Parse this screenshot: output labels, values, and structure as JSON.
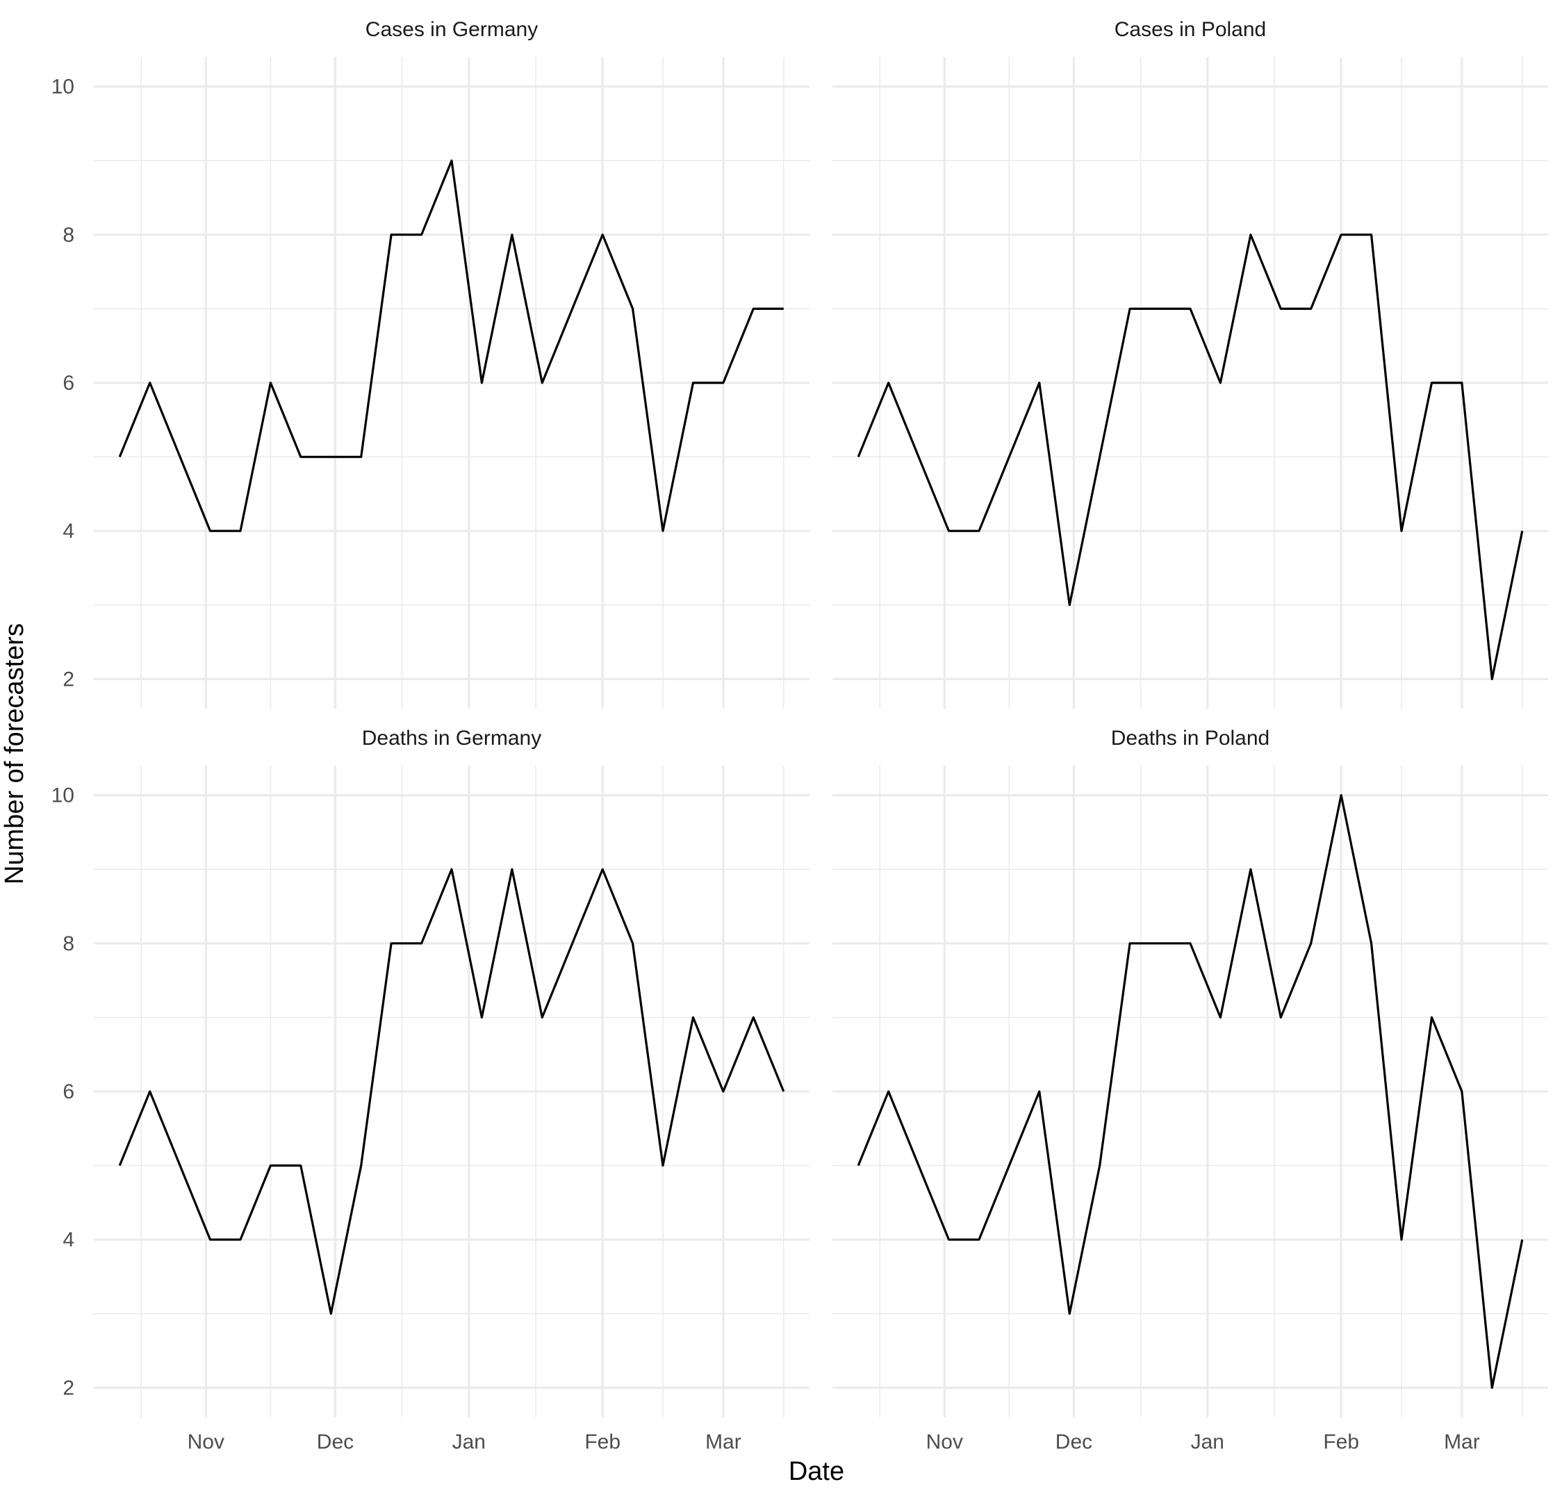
{
  "chart_data": {
    "type": "line",
    "xlabel": "Date",
    "ylabel": "Number of forecasters",
    "ylim": [
      1.6,
      10.4
    ],
    "yticks": [
      2,
      4,
      6,
      8,
      10
    ],
    "xlim": [
      "2020-10-06",
      "2021-03-21"
    ],
    "xticks": [
      {
        "date": "2020-11-01",
        "label": "Nov"
      },
      {
        "date": "2020-12-01",
        "label": "Dec"
      },
      {
        "date": "2021-01-01",
        "label": "Jan"
      },
      {
        "date": "2021-02-01",
        "label": "Feb"
      },
      {
        "date": "2021-03-01",
        "label": "Mar"
      }
    ],
    "grid": true,
    "x_dates": [
      "2020-10-12",
      "2020-10-19",
      "2020-10-26",
      "2020-11-02",
      "2020-11-09",
      "2020-11-16",
      "2020-11-23",
      "2020-11-30",
      "2020-12-07",
      "2020-12-14",
      "2020-12-21",
      "2020-12-28",
      "2021-01-04",
      "2021-01-11",
      "2021-01-18",
      "2021-01-25",
      "2021-02-01",
      "2021-02-08",
      "2021-02-15",
      "2021-02-22",
      "2021-03-01",
      "2021-03-08",
      "2021-03-15"
    ],
    "panels": [
      {
        "title": "Cases in Germany",
        "values": [
          5,
          6,
          5,
          4,
          4,
          6,
          5,
          5,
          5,
          8,
          8,
          9,
          6,
          8,
          6,
          7,
          8,
          7,
          4,
          6,
          6,
          7,
          7
        ]
      },
      {
        "title": "Cases in Poland",
        "values": [
          5,
          6,
          5,
          4,
          4,
          5,
          6,
          3,
          5,
          7,
          7,
          7,
          6,
          8,
          7,
          7,
          8,
          8,
          4,
          6,
          6,
          2,
          4
        ]
      },
      {
        "title": "Deaths in Germany",
        "values": [
          5,
          6,
          5,
          4,
          4,
          5,
          5,
          3,
          5,
          8,
          8,
          9,
          7,
          9,
          7,
          8,
          9,
          8,
          5,
          7,
          6,
          7,
          6
        ]
      },
      {
        "title": "Deaths in Poland",
        "values": [
          5,
          6,
          5,
          4,
          4,
          5,
          6,
          3,
          5,
          8,
          8,
          8,
          7,
          9,
          7,
          8,
          10,
          8,
          4,
          7,
          6,
          2,
          4
        ]
      }
    ]
  }
}
